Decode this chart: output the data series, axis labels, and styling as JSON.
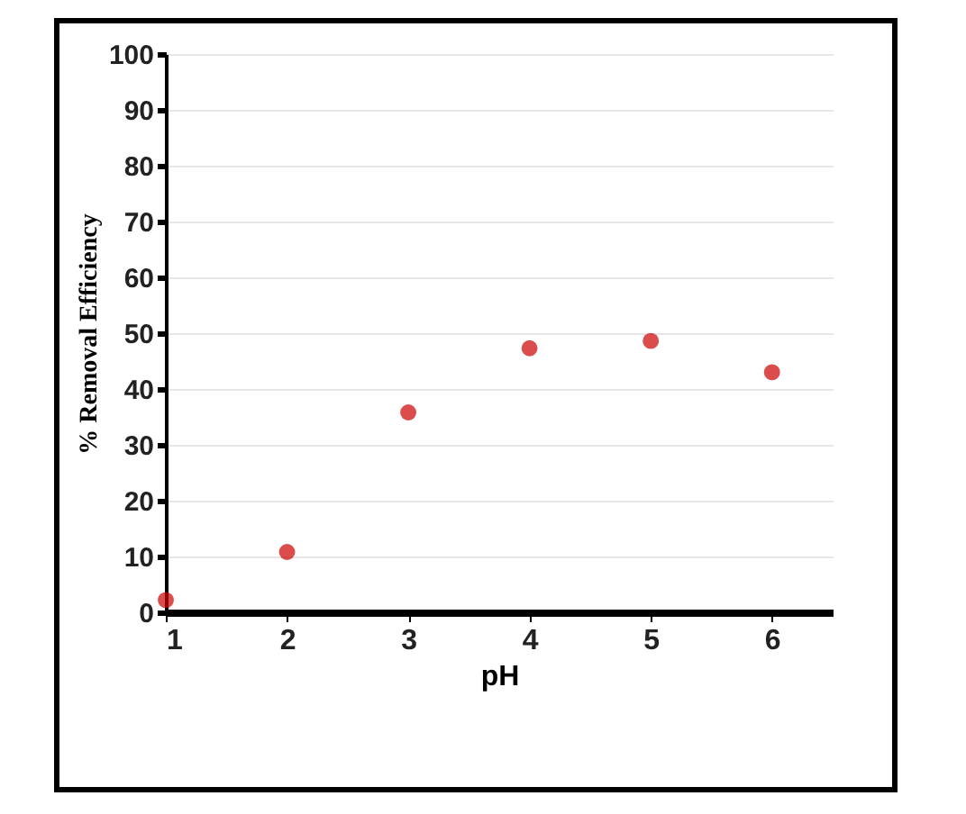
{
  "chart_data": {
    "type": "scatter",
    "xlabel": "pH",
    "ylabel": "% Removal Efficiency",
    "x": [
      1,
      2,
      3,
      4,
      5,
      6
    ],
    "series": [
      {
        "color": "#cc0000",
        "values": [
          2.2,
          10.8,
          35.8,
          47.3,
          48.6,
          43.0
        ]
      }
    ],
    "xlim": [
      1,
      6.5
    ],
    "xticks": [
      1,
      2,
      3,
      4,
      5,
      6
    ],
    "ylim": [
      0,
      100
    ],
    "yticks": [
      0,
      10,
      20,
      30,
      40,
      50,
      60,
      70,
      80,
      90,
      100
    ],
    "grid": "y",
    "marker": "circle"
  }
}
